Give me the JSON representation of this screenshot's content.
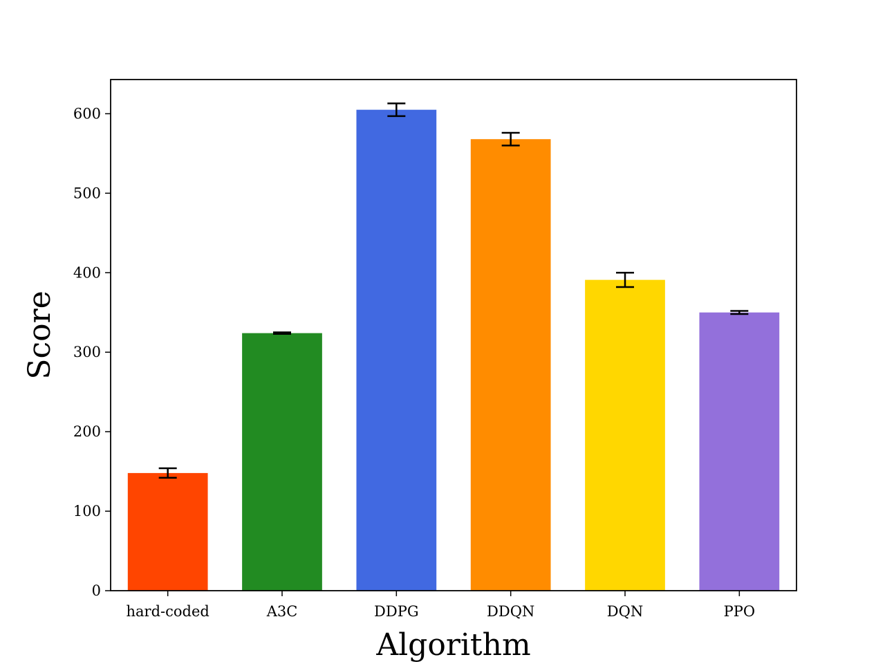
{
  "chart_data": {
    "type": "bar",
    "title": "",
    "xlabel": "Algorithm",
    "ylabel": "Score",
    "categories": [
      "hard-coded",
      "A3C",
      "DDPG",
      "DDQN",
      "DQN",
      "PPO"
    ],
    "values": [
      148,
      324,
      605,
      568,
      391,
      350
    ],
    "errors": [
      6,
      1,
      8,
      8,
      9,
      2
    ],
    "colors": [
      "#FF4500",
      "#228B22",
      "#4169E1",
      "#FF8C00",
      "#FFD700",
      "#9370DB"
    ],
    "ylim": [
      0,
      643
    ],
    "yticks": [
      0,
      100,
      200,
      300,
      400,
      500,
      600
    ],
    "grid": false,
    "legend": "none"
  }
}
